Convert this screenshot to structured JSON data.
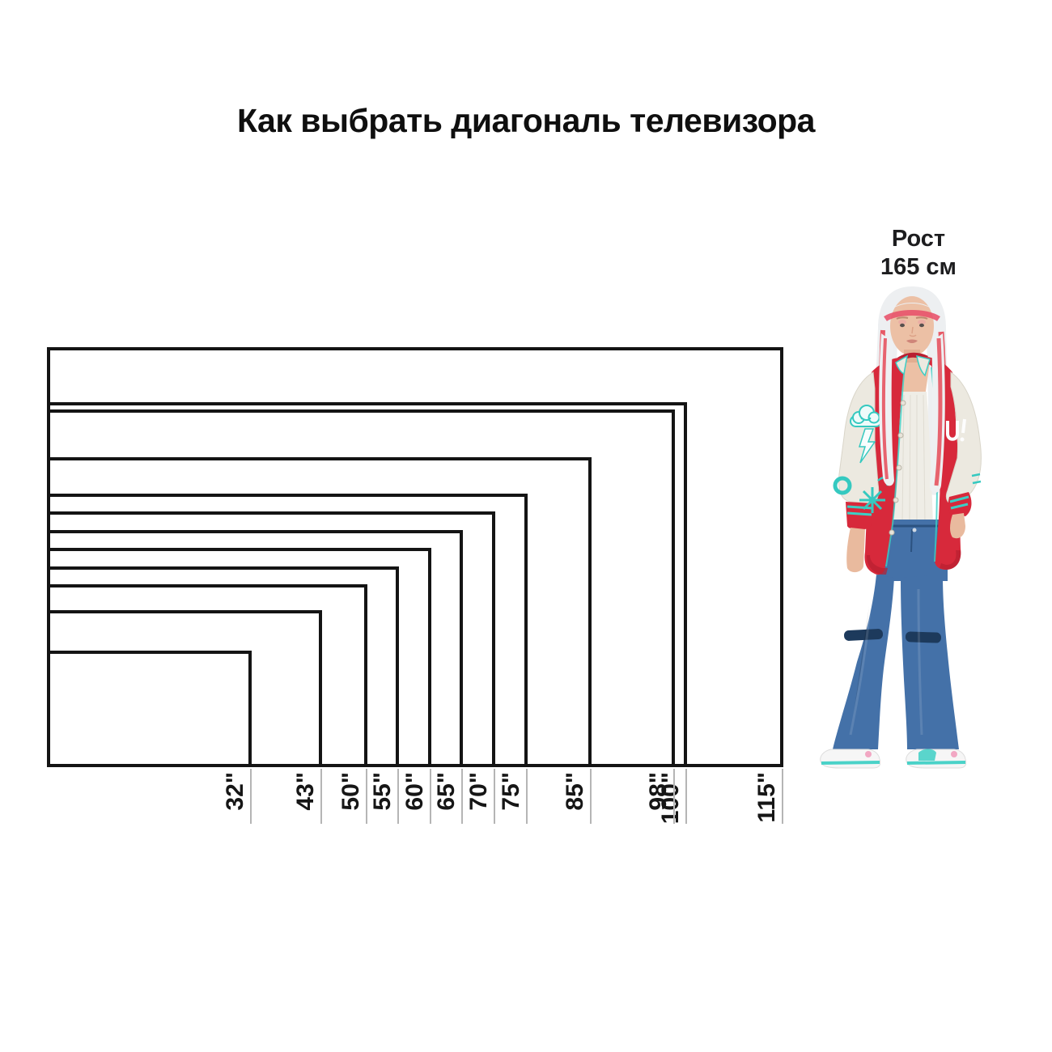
{
  "title": "Как выбрать диагональ телевизора",
  "person_label": {
    "line1": "Рост",
    "line2": "165 см"
  },
  "chart_data": {
    "type": "nested-rectangles",
    "title": "Как выбрать диагональ телевизора",
    "description": "Outlines of 16:9 TV screens of different diagonals, nested and anchored to a shared bottom-left corner, with a 165 cm person shown at the same scale for comparison",
    "unit": "inches (diagonal)",
    "aspect_ratio": "16:9",
    "anchor": "bottom-left",
    "sizes_inches": [
      32,
      43,
      50,
      55,
      60,
      65,
      70,
      75,
      85,
      98,
      100,
      115
    ],
    "tick_labels": [
      "32\"",
      "43\"",
      "50\"",
      "55\"",
      "60\"",
      "65\"",
      "70\"",
      "75\"",
      "85\"",
      "98\"",
      "100\"",
      "115\""
    ],
    "person_height_cm": 165,
    "person_height_label": "Рост 165 см",
    "axis_note": "each rectangle's right edge has a gray tick below the shared bottom line with a rotated size label"
  },
  "colors": {
    "background": "#ffffff",
    "rect_border": "#141414",
    "tick_line": "#b5b5b5",
    "text": "#111111",
    "jacket_red": "#d7293b",
    "jacket_dark_red": "#b81f31",
    "sleeve_cream": "#ece9e0",
    "trim_teal": "#35c9c0",
    "denim_blue": "#4471a8",
    "rip_dark": "#1d3a5c",
    "hair_white": "#edeff1",
    "hair_streak_red": "#e5404e",
    "skin": "#ecc0a5",
    "shoe_white": "#f6f6f6",
    "shoe_pink": "#f2a7c3"
  }
}
